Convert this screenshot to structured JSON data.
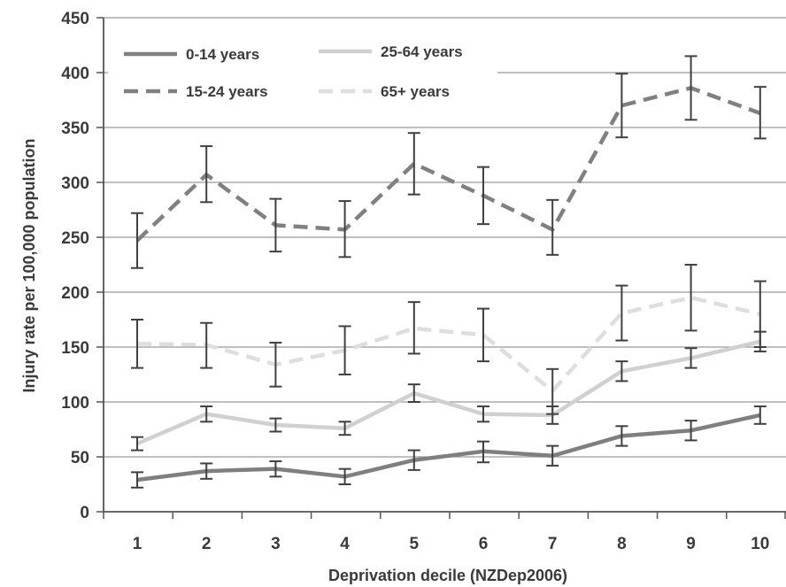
{
  "chart_data": {
    "type": "line",
    "title": "",
    "xlabel": "Deprivation decile (NZDep2006)",
    "ylabel": "Injury rate per 100,000 population",
    "x": [
      1,
      2,
      3,
      4,
      5,
      6,
      7,
      8,
      9,
      10
    ],
    "x_tick_labels": [
      "1",
      "2",
      "3",
      "4",
      "5",
      "6",
      "7",
      "8",
      "9",
      "10"
    ],
    "ylim": [
      0,
      450
    ],
    "y_ticks": [
      0,
      50,
      100,
      150,
      200,
      250,
      300,
      350,
      400,
      450
    ],
    "y_tick_labels": [
      "0",
      "50",
      "100",
      "150",
      "200",
      "250",
      "300",
      "350",
      "400",
      "450"
    ],
    "grid": "horizontal",
    "legend": "top-left",
    "series": [
      {
        "name": "0-14 years",
        "style": "solid",
        "color": "#7f7f7f",
        "values": [
          29,
          37,
          39,
          32,
          47,
          55,
          51,
          69,
          74,
          88
        ],
        "ci_lower": [
          22,
          30,
          32,
          25,
          38,
          45,
          42,
          60,
          65,
          80
        ],
        "ci_upper": [
          36,
          44,
          46,
          39,
          56,
          64,
          60,
          78,
          83,
          96
        ]
      },
      {
        "name": "15-24 years",
        "style": "dashed",
        "color": "#808080",
        "values": [
          247,
          307,
          261,
          257,
          317,
          288,
          257,
          370,
          386,
          363
        ],
        "ci_lower": [
          222,
          282,
          237,
          232,
          289,
          262,
          234,
          341,
          357,
          340
        ],
        "ci_upper": [
          272,
          333,
          285,
          283,
          345,
          314,
          284,
          399,
          415,
          387
        ]
      },
      {
        "name": "25-64 years",
        "style": "solid",
        "color": "#d0d0d0",
        "values": [
          62,
          89,
          79,
          76,
          108,
          89,
          88,
          128,
          140,
          155
        ],
        "ci_lower": [
          56,
          82,
          73,
          70,
          100,
          82,
          80,
          119,
          131,
          146
        ],
        "ci_upper": [
          68,
          96,
          85,
          82,
          116,
          96,
          96,
          137,
          149,
          164
        ]
      },
      {
        "name": "65+ years",
        "style": "dashed",
        "color": "#dedede",
        "values": [
          153,
          152,
          134,
          147,
          167,
          161,
          110,
          181,
          195,
          180
        ],
        "ci_lower": [
          131,
          131,
          114,
          125,
          144,
          137,
          89,
          156,
          165,
          150
        ],
        "ci_upper": [
          175,
          172,
          154,
          169,
          191,
          185,
          130,
          206,
          225,
          210
        ]
      }
    ]
  }
}
